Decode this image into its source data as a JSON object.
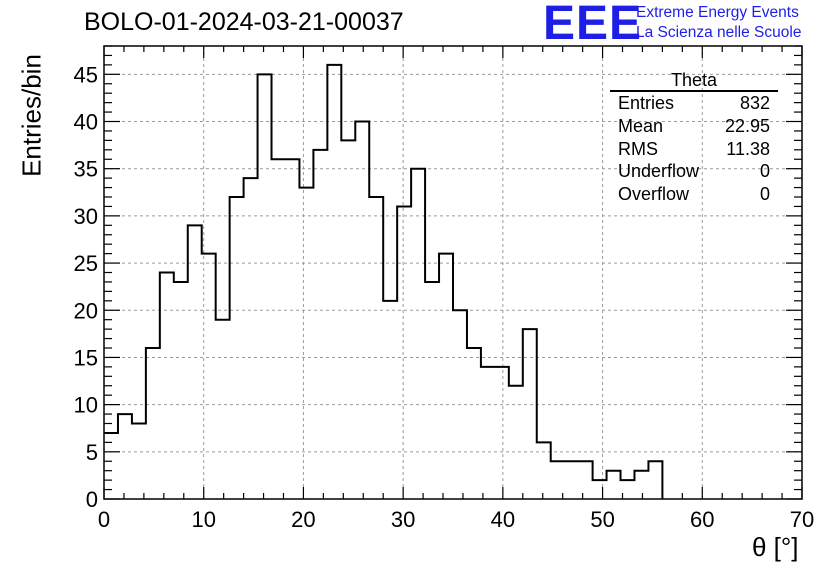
{
  "title": "BOLO-01-2024-03-21-00037",
  "logo": {
    "mark": "EEE",
    "line1": "Extreme Energy Events",
    "line2": "La Scienza nelle Scuole",
    "color": "#1e1ee6"
  },
  "stats": {
    "name": "Theta",
    "rows": [
      {
        "label": "Entries",
        "value": "832"
      },
      {
        "label": "Mean",
        "value": "22.95"
      },
      {
        "label": "RMS",
        "value": "11.38"
      },
      {
        "label": "Underflow",
        "value": "0"
      },
      {
        "label": "Overflow",
        "value": "0"
      }
    ]
  },
  "chart_data": {
    "type": "bar",
    "style": "step-histogram",
    "title": "BOLO-01-2024-03-21-00037",
    "xlabel": "θ [°]",
    "ylabel": "Entries/bin",
    "xlim": [
      0,
      70
    ],
    "ylim": [
      0,
      48
    ],
    "bin_width": 1.4,
    "bin_edges_start": 0,
    "xticks": [
      0,
      10,
      20,
      30,
      40,
      50,
      60,
      70
    ],
    "yticks": [
      0,
      5,
      10,
      15,
      20,
      25,
      30,
      35,
      40,
      45
    ],
    "grid": true,
    "values": [
      7,
      9,
      8,
      16,
      24,
      23,
      29,
      26,
      19,
      32,
      34,
      45,
      36,
      36,
      33,
      37,
      46,
      38,
      40,
      32,
      21,
      31,
      35,
      23,
      26,
      20,
      16,
      14,
      14,
      12,
      18,
      6,
      4,
      4,
      4,
      2,
      3,
      2,
      3,
      4,
      0,
      0,
      0,
      0,
      0,
      0,
      0,
      0,
      0,
      0
    ]
  }
}
